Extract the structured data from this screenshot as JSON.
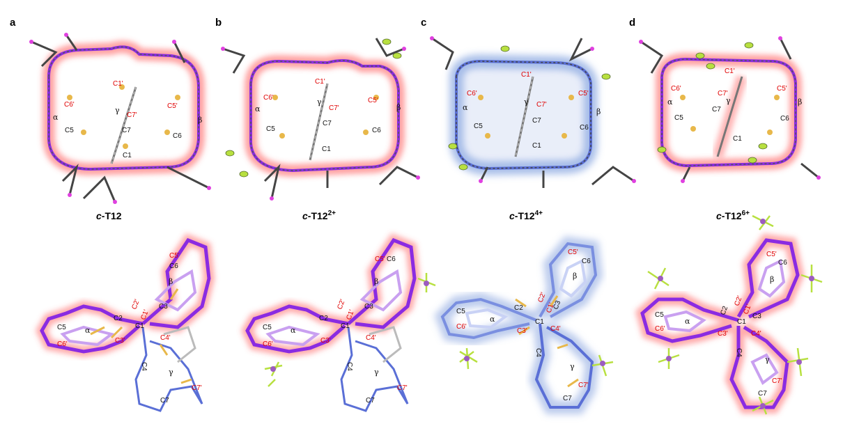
{
  "panel_labels": [
    "a",
    "b",
    "c",
    "d"
  ],
  "captions": [
    {
      "prefix": "c",
      "main": "-T12",
      "sup": ""
    },
    {
      "prefix": "c",
      "main": "-T12",
      "sup": "2+"
    },
    {
      "prefix": "c",
      "main": "-T12",
      "sup": "4+"
    },
    {
      "prefix": "c",
      "main": "-T12",
      "sup": "6+"
    }
  ],
  "top_atoms": {
    "red": [
      "C1'",
      "C6'",
      "C5'",
      "C7'"
    ],
    "black": [
      "C7",
      "C5",
      "C6",
      "C1"
    ],
    "greek": [
      "α",
      "β",
      "γ"
    ]
  },
  "bottom_atoms": {
    "red": [
      "C5'",
      "C2'",
      "C1'",
      "C6'",
      "C3'",
      "C4'",
      "C7'"
    ],
    "black": [
      "C6",
      "C3",
      "C2",
      "C1",
      "C5",
      "C4",
      "C7"
    ],
    "greek": [
      "α",
      "β",
      "γ"
    ]
  },
  "colors": {
    "glow_red": "#ff4d4d",
    "glow_blue": "#6a8fd8",
    "backbone_purple": "#8a2be2",
    "backbone_blue": "#5a6fd6",
    "sulfur": "#e8b84a",
    "carbon": "#6b6b6b",
    "hydrogen": "#e040e0",
    "fluorine": "#b8e040",
    "phosphorus": "#9c5cc0"
  }
}
